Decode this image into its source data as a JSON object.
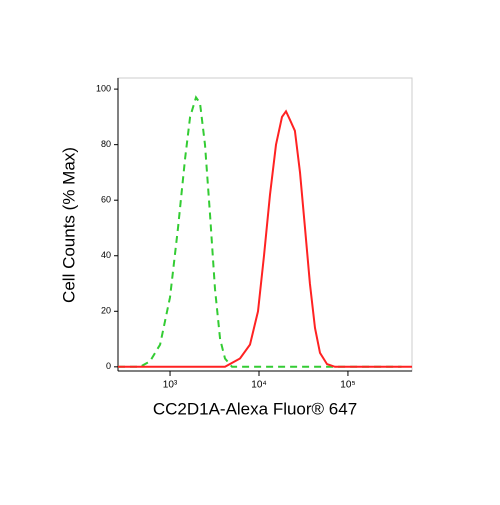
{
  "chart_data": {
    "type": "line",
    "x_label": "CC2D1A-Alexa Fluor® 647",
    "y_label": "Cell Counts (% Max)",
    "xscale": "log",
    "xlim": [
      260,
      525000
    ],
    "ylim": [
      -1.5,
      104
    ],
    "xticks": [
      {
        "value": 1000,
        "label": "10³"
      },
      {
        "value": 10000,
        "label": "10⁴"
      },
      {
        "value": 100000,
        "label": "10⁵"
      }
    ],
    "yticks": [
      0,
      20,
      40,
      60,
      80,
      100
    ],
    "series": [
      {
        "color": "#33cc33",
        "dash": true,
        "x": [
          260,
          460,
          596,
          773,
          1000,
          1230,
          1475,
          1680,
          1960,
          2170,
          2470,
          2810,
          3200,
          3650,
          4150,
          4970,
          400000
        ],
        "values": [
          0,
          0,
          2,
          8,
          25,
          50,
          75,
          90,
          97,
          95,
          80,
          55,
          28,
          10,
          3,
          0,
          0
        ]
      },
      {
        "color": "#ff2222",
        "dash": false,
        "x": [
          260,
          4150,
          6120,
          7930,
          9750,
          11380,
          13300,
          15530,
          18130,
          20100,
          22280,
          25350,
          28900,
          32900,
          37400,
          42600,
          48500,
          58100,
          71400,
          525000
        ],
        "values": [
          0,
          0,
          3,
          8,
          20,
          40,
          62,
          80,
          90,
          92,
          89,
          85,
          70,
          50,
          30,
          14,
          5,
          1,
          0,
          0
        ]
      }
    ]
  }
}
